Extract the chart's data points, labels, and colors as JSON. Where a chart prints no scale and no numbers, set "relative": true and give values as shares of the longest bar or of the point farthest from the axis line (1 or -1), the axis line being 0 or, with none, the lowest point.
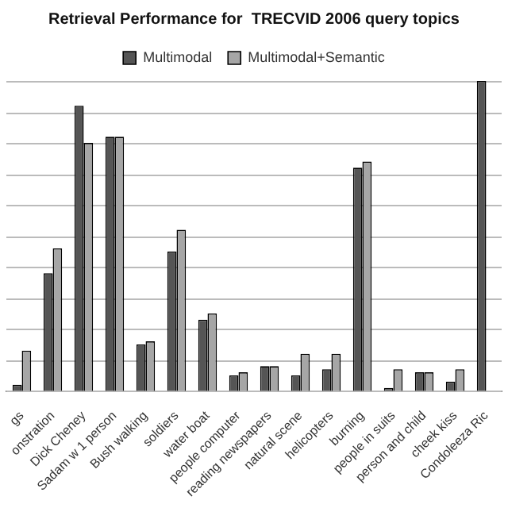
{
  "chart_data": {
    "type": "bar",
    "title": "Retrieval Performance for  TRECVID 2006 query topics",
    "relative": true,
    "grid": "y",
    "legend": "top",
    "categories": [
      "gs",
      "onstration",
      "Dick Cheney",
      "Sadam w 1 person",
      "Bush walking",
      "soldiers",
      "water boat",
      "people computer",
      "reading newspapers",
      "natural scene",
      "helicopters",
      "burning",
      "people in suits",
      "person and child",
      "cheek kiss",
      "Condoleeza Ric"
    ],
    "series": [
      {
        "name": "Multimodal",
        "color": "#555555",
        "values": [
          0.02,
          0.38,
          0.92,
          0.82,
          0.15,
          0.45,
          0.23,
          0.05,
          0.08,
          0.05,
          0.07,
          0.72,
          0.01,
          0.06,
          0.03,
          1
        ]
      },
      {
        "name": "Multimodal+Semantic",
        "color": "#a6a6a6",
        "values": [
          0.13,
          0.46,
          0.8,
          0.82,
          0.16,
          0.52,
          0.25,
          0.06,
          0.08,
          0.12,
          0.12,
          0.74,
          0.07,
          0.06,
          0.07,
          null
        ]
      }
    ]
  }
}
